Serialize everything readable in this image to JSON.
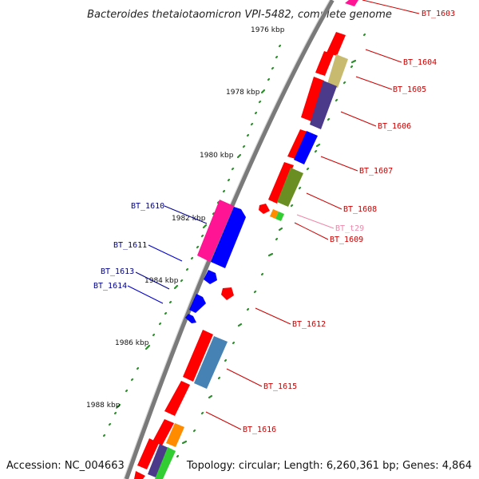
{
  "title": "Bacteroides thetaiotaomicron VPI-5482, complete genome",
  "footer": {
    "accession": "Accession: NC_004663",
    "topology": "Topology: circular; Length: 6,260,361 bp; Genes: 4,864"
  },
  "colors": {
    "backbone": "#7a7a7a",
    "tick": "#2d8c2d",
    "label_right": "#cc0000",
    "label_left": "#00008b",
    "label_rna": "#ee88aa"
  },
  "kbp_labels": [
    "1976 kbp",
    "1978 kbp",
    "1980 kbp",
    "1982 kbp",
    "1984 kbp",
    "1986 kbp",
    "1988 kbp"
  ],
  "genes": [
    {
      "name": "BT_1603",
      "color": "#ff1493"
    },
    {
      "name": "BT_1604",
      "color": "#c8bb70"
    },
    {
      "name": "BT_1605",
      "color": "#4b3a8a"
    },
    {
      "name": "BT_1606",
      "color": "#0000ff"
    },
    {
      "name": "BT_1607",
      "color": "#6b8e23"
    },
    {
      "name": "BT_1608",
      "color": "#ff0000"
    },
    {
      "name": "BT_t29",
      "color": "#32cd32"
    },
    {
      "name": "BT_1609",
      "color": "#ff8c00"
    },
    {
      "name": "BT_1610",
      "color": "#ff1493"
    },
    {
      "name": "BT_1611",
      "color": "#0000ff"
    },
    {
      "name": "BT_1612",
      "color": "#ff0000"
    },
    {
      "name": "BT_1613",
      "color": "#0000ff"
    },
    {
      "name": "BT_1614",
      "color": "#0000ff"
    },
    {
      "name": "BT_1615",
      "color": "#4682b4"
    },
    {
      "name": "BT_1616",
      "color": "#ff8c00"
    }
  ]
}
